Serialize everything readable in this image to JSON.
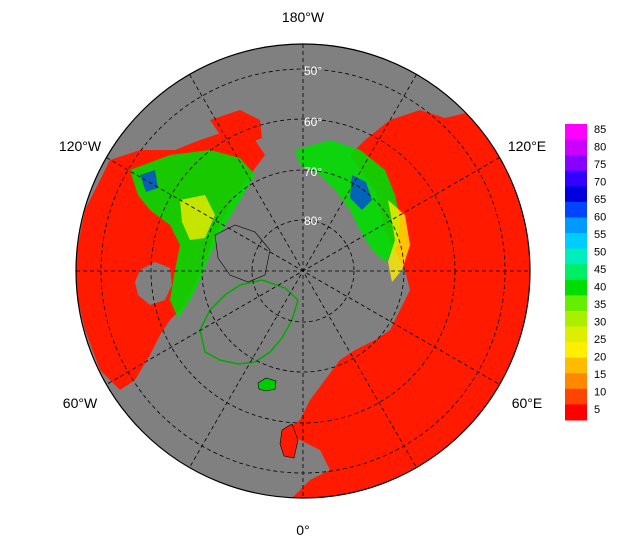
{
  "map": {
    "longitude_labels": {
      "top": "180°W",
      "upper_left": "120°W",
      "upper_right": "120°E",
      "lower_left": "60°W",
      "lower_right": "60°E",
      "bottom": "0°"
    },
    "latitude_labels": [
      "50°",
      "60°",
      "70°",
      "80°"
    ],
    "colors": {
      "ocean": "#808080",
      "background": "#ffffff",
      "border": "#000000"
    }
  },
  "colorbar": {
    "ticks": [
      "85",
      "80",
      "75",
      "70",
      "65",
      "60",
      "55",
      "50",
      "45",
      "40",
      "35",
      "30",
      "25",
      "20",
      "15",
      "10",
      "5"
    ],
    "colors": [
      "#ff00ff",
      "#cc00ff",
      "#8800ff",
      "#3300ff",
      "#0000dd",
      "#0044ff",
      "#0099ff",
      "#00ccff",
      "#00eebb",
      "#00ee66",
      "#00dd00",
      "#66ee00",
      "#aaee00",
      "#ddee00",
      "#ffee00",
      "#ffbb00",
      "#ff8800",
      "#ff4400",
      "#ff0000"
    ]
  }
}
